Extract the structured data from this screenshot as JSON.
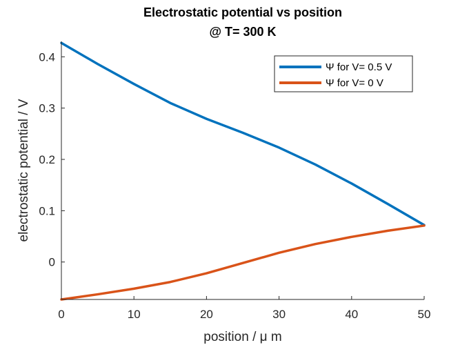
{
  "chart_data": {
    "type": "line",
    "title_line1": "Electrostatic potential vs position",
    "title_line2": "@ T= 300 K",
    "xlabel": "position / μ m",
    "ylabel": "electrostatic potential / V",
    "xlim": [
      0,
      50
    ],
    "ylim": [
      -0.073,
      0.43
    ],
    "xticks": [
      0,
      10,
      20,
      30,
      40,
      50
    ],
    "xtick_labels": [
      "0",
      "10",
      "20",
      "30",
      "40",
      "50"
    ],
    "yticks": [
      0,
      0.1,
      0.2,
      0.3,
      0.4
    ],
    "ytick_labels": [
      "0",
      "0.1",
      "0.2",
      "0.3",
      "0.4"
    ],
    "grid": false,
    "legend_position": "top-right",
    "series": [
      {
        "name": "Ψ for V= 0.5 V",
        "color": "#0072BD",
        "x": [
          0,
          5,
          10,
          15,
          20,
          25,
          30,
          35,
          40,
          45,
          50
        ],
        "y": [
          0.427,
          0.386,
          0.347,
          0.31,
          0.279,
          0.252,
          0.223,
          0.19,
          0.153,
          0.113,
          0.072
        ]
      },
      {
        "name": "Ψ for V= 0 V",
        "color": "#D95319",
        "x": [
          0,
          5,
          10,
          15,
          20,
          25,
          30,
          35,
          40,
          45,
          50
        ],
        "y": [
          -0.073,
          -0.063,
          -0.052,
          -0.039,
          -0.022,
          -0.002,
          0.018,
          0.035,
          0.049,
          0.061,
          0.071
        ]
      }
    ]
  }
}
